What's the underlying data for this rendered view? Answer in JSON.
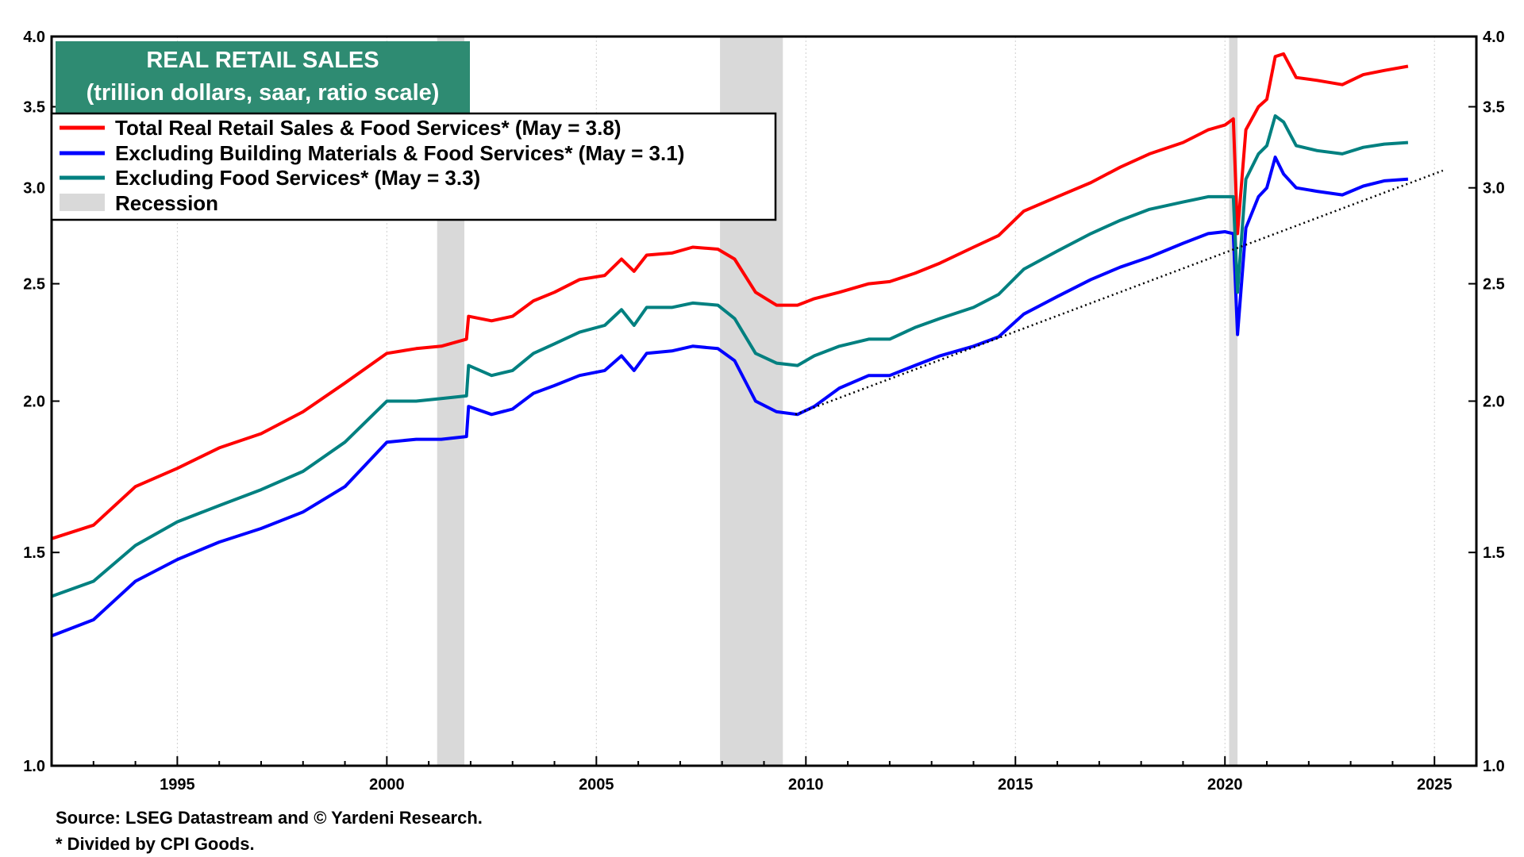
{
  "chart_data": {
    "type": "line",
    "title": "REAL RETAIL SALES",
    "subtitle": "(trillion dollars, saar, ratio scale)",
    "yscale": "log",
    "xlim": [
      1992,
      2026
    ],
    "ylim": [
      1.0,
      4.0
    ],
    "yticks": [
      "1.0",
      "1.5",
      "2.0",
      "2.5",
      "3.0",
      "3.5",
      "4.0"
    ],
    "xticks": [
      "1995",
      "2000",
      "2005",
      "2010",
      "2015",
      "2020",
      "2025"
    ],
    "legend_position": "top-left",
    "recessions": [
      [
        2001.2,
        2001.85
      ],
      [
        2007.95,
        2009.45
      ],
      [
        2020.1,
        2020.3
      ]
    ],
    "recession_label": "Recession",
    "recession_color": "#d9d9d9",
    "series": [
      {
        "name": "Total Real Retail Sales & Food Services* (May = 3.8)",
        "color": "#ff0000",
        "points": [
          [
            1992.0,
            1.54
          ],
          [
            1993.0,
            1.58
          ],
          [
            1994.0,
            1.7
          ],
          [
            1995.0,
            1.76
          ],
          [
            1996.0,
            1.83
          ],
          [
            1997.0,
            1.88
          ],
          [
            1998.0,
            1.96
          ],
          [
            1999.0,
            2.07
          ],
          [
            2000.0,
            2.19
          ],
          [
            2000.7,
            2.21
          ],
          [
            2001.3,
            2.22
          ],
          [
            2001.9,
            2.25
          ],
          [
            2001.95,
            2.35
          ],
          [
            2002.5,
            2.33
          ],
          [
            2003.0,
            2.35
          ],
          [
            2003.5,
            2.42
          ],
          [
            2004.0,
            2.46
          ],
          [
            2004.6,
            2.52
          ],
          [
            2005.2,
            2.54
          ],
          [
            2005.6,
            2.62
          ],
          [
            2005.9,
            2.56
          ],
          [
            2006.2,
            2.64
          ],
          [
            2006.8,
            2.65
          ],
          [
            2007.3,
            2.68
          ],
          [
            2007.9,
            2.67
          ],
          [
            2008.3,
            2.62
          ],
          [
            2008.8,
            2.46
          ],
          [
            2009.3,
            2.4
          ],
          [
            2009.8,
            2.4
          ],
          [
            2010.2,
            2.43
          ],
          [
            2010.8,
            2.46
          ],
          [
            2011.5,
            2.5
          ],
          [
            2012.0,
            2.51
          ],
          [
            2012.6,
            2.55
          ],
          [
            2013.2,
            2.6
          ],
          [
            2014.0,
            2.68
          ],
          [
            2014.6,
            2.74
          ],
          [
            2015.2,
            2.87
          ],
          [
            2016.0,
            2.95
          ],
          [
            2016.8,
            3.03
          ],
          [
            2017.5,
            3.12
          ],
          [
            2018.2,
            3.2
          ],
          [
            2019.0,
            3.27
          ],
          [
            2019.6,
            3.35
          ],
          [
            2020.0,
            3.38
          ],
          [
            2020.2,
            3.42
          ],
          [
            2020.3,
            2.75
          ],
          [
            2020.5,
            3.35
          ],
          [
            2020.8,
            3.5
          ],
          [
            2021.0,
            3.55
          ],
          [
            2021.2,
            3.85
          ],
          [
            2021.4,
            3.87
          ],
          [
            2021.7,
            3.7
          ],
          [
            2022.2,
            3.68
          ],
          [
            2022.8,
            3.65
          ],
          [
            2023.3,
            3.72
          ],
          [
            2023.8,
            3.75
          ],
          [
            2024.37,
            3.78
          ]
        ]
      },
      {
        "name": "Excluding Building Materials & Food Services* (May = 3.1)",
        "color": "#0000ff",
        "points": [
          [
            1992.0,
            1.28
          ],
          [
            1993.0,
            1.32
          ],
          [
            1994.0,
            1.42
          ],
          [
            1995.0,
            1.48
          ],
          [
            1996.0,
            1.53
          ],
          [
            1997.0,
            1.57
          ],
          [
            1998.0,
            1.62
          ],
          [
            1999.0,
            1.7
          ],
          [
            2000.0,
            1.85
          ],
          [
            2000.7,
            1.86
          ],
          [
            2001.3,
            1.86
          ],
          [
            2001.9,
            1.87
          ],
          [
            2001.95,
            1.98
          ],
          [
            2002.5,
            1.95
          ],
          [
            2003.0,
            1.97
          ],
          [
            2003.5,
            2.03
          ],
          [
            2004.0,
            2.06
          ],
          [
            2004.6,
            2.1
          ],
          [
            2005.2,
            2.12
          ],
          [
            2005.6,
            2.18
          ],
          [
            2005.9,
            2.12
          ],
          [
            2006.2,
            2.19
          ],
          [
            2006.8,
            2.2
          ],
          [
            2007.3,
            2.22
          ],
          [
            2007.9,
            2.21
          ],
          [
            2008.3,
            2.16
          ],
          [
            2008.8,
            2.0
          ],
          [
            2009.3,
            1.96
          ],
          [
            2009.8,
            1.95
          ],
          [
            2010.2,
            1.98
          ],
          [
            2010.8,
            2.05
          ],
          [
            2011.5,
            2.1
          ],
          [
            2012.0,
            2.1
          ],
          [
            2012.6,
            2.14
          ],
          [
            2013.2,
            2.18
          ],
          [
            2014.0,
            2.22
          ],
          [
            2014.6,
            2.26
          ],
          [
            2015.2,
            2.36
          ],
          [
            2016.0,
            2.44
          ],
          [
            2016.8,
            2.52
          ],
          [
            2017.5,
            2.58
          ],
          [
            2018.2,
            2.63
          ],
          [
            2019.0,
            2.7
          ],
          [
            2019.6,
            2.75
          ],
          [
            2020.0,
            2.76
          ],
          [
            2020.2,
            2.75
          ],
          [
            2020.3,
            2.27
          ],
          [
            2020.5,
            2.78
          ],
          [
            2020.8,
            2.95
          ],
          [
            2021.0,
            3.0
          ],
          [
            2021.2,
            3.18
          ],
          [
            2021.4,
            3.08
          ],
          [
            2021.7,
            3.0
          ],
          [
            2022.2,
            2.98
          ],
          [
            2022.8,
            2.96
          ],
          [
            2023.3,
            3.01
          ],
          [
            2023.8,
            3.04
          ],
          [
            2024.37,
            3.05
          ]
        ]
      },
      {
        "name": "Excluding Food Services* (May = 3.3)",
        "color": "#008080",
        "points": [
          [
            1992.0,
            1.38
          ],
          [
            1993.0,
            1.42
          ],
          [
            1994.0,
            1.52
          ],
          [
            1995.0,
            1.59
          ],
          [
            1996.0,
            1.64
          ],
          [
            1997.0,
            1.69
          ],
          [
            1998.0,
            1.75
          ],
          [
            1999.0,
            1.85
          ],
          [
            2000.0,
            2.0
          ],
          [
            2000.7,
            2.0
          ],
          [
            2001.3,
            2.01
          ],
          [
            2001.9,
            2.02
          ],
          [
            2001.95,
            2.14
          ],
          [
            2002.5,
            2.1
          ],
          [
            2003.0,
            2.12
          ],
          [
            2003.5,
            2.19
          ],
          [
            2004.0,
            2.23
          ],
          [
            2004.6,
            2.28
          ],
          [
            2005.2,
            2.31
          ],
          [
            2005.6,
            2.38
          ],
          [
            2005.9,
            2.31
          ],
          [
            2006.2,
            2.39
          ],
          [
            2006.8,
            2.39
          ],
          [
            2007.3,
            2.41
          ],
          [
            2007.9,
            2.4
          ],
          [
            2008.3,
            2.34
          ],
          [
            2008.8,
            2.19
          ],
          [
            2009.3,
            2.15
          ],
          [
            2009.8,
            2.14
          ],
          [
            2010.2,
            2.18
          ],
          [
            2010.8,
            2.22
          ],
          [
            2011.5,
            2.25
          ],
          [
            2012.0,
            2.25
          ],
          [
            2012.6,
            2.3
          ],
          [
            2013.2,
            2.34
          ],
          [
            2014.0,
            2.39
          ],
          [
            2014.6,
            2.45
          ],
          [
            2015.2,
            2.57
          ],
          [
            2016.0,
            2.66
          ],
          [
            2016.8,
            2.75
          ],
          [
            2017.5,
            2.82
          ],
          [
            2018.2,
            2.88
          ],
          [
            2019.0,
            2.92
          ],
          [
            2019.6,
            2.95
          ],
          [
            2020.0,
            2.95
          ],
          [
            2020.2,
            2.95
          ],
          [
            2020.3,
            2.46
          ],
          [
            2020.5,
            3.05
          ],
          [
            2020.8,
            3.2
          ],
          [
            2021.0,
            3.25
          ],
          [
            2021.2,
            3.44
          ],
          [
            2021.4,
            3.4
          ],
          [
            2021.7,
            3.25
          ],
          [
            2022.2,
            3.22
          ],
          [
            2022.8,
            3.2
          ],
          [
            2023.3,
            3.24
          ],
          [
            2023.8,
            3.26
          ],
          [
            2024.37,
            3.27
          ]
        ]
      }
    ],
    "trendline": {
      "color": "#000000",
      "style": "dotted",
      "points": [
        [
          2009.75,
          1.95
        ],
        [
          2025.2,
          3.1
        ]
      ]
    },
    "source": "Source: LSEG Datastream and © Yardeni Research.",
    "footnote": "* Divided by CPI Goods."
  }
}
